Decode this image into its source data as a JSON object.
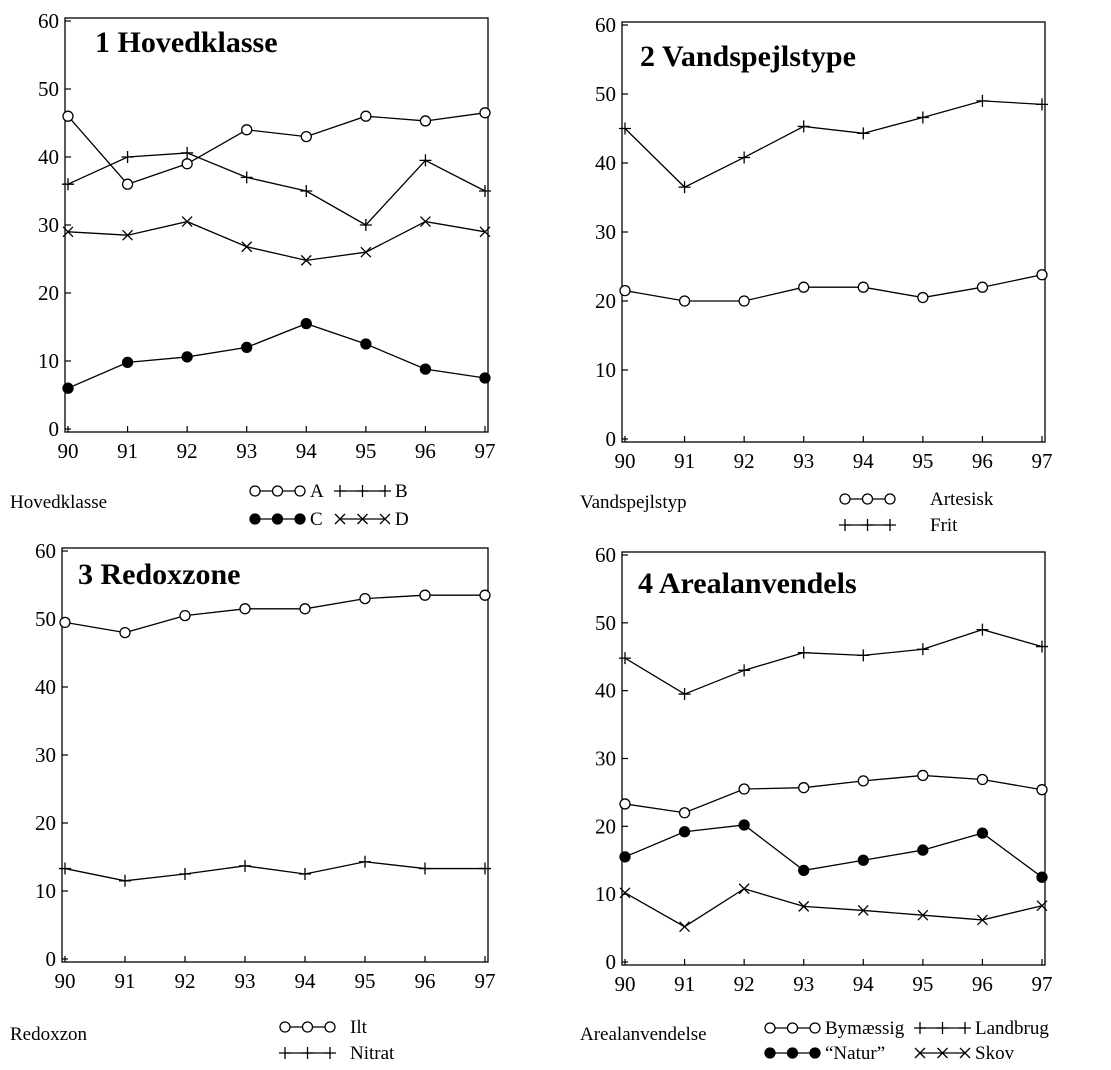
{
  "chart_data": [
    {
      "type": "line",
      "number": "1",
      "title": "Hovedklasse",
      "legend_title": "Hovedklasse",
      "x": [
        "90",
        "91",
        "92",
        "93",
        "94",
        "95",
        "96",
        "97"
      ],
      "yticks": [
        "0",
        "10",
        "20",
        "30",
        "40",
        "50",
        "60"
      ],
      "ylim": [
        0,
        60
      ],
      "grid": false,
      "series": [
        {
          "name": "A",
          "marker": "circle-open",
          "values": [
            46,
            36,
            39,
            44,
            43,
            46,
            45.3,
            46.5
          ]
        },
        {
          "name": "B",
          "marker": "plus",
          "values": [
            36,
            40,
            40.6,
            37,
            35,
            30,
            39.5,
            35
          ]
        },
        {
          "name": "C",
          "marker": "circle-filled",
          "values": [
            6,
            9.8,
            10.6,
            12,
            15.5,
            12.5,
            8.8,
            7.5
          ]
        },
        {
          "name": "D",
          "marker": "x",
          "values": [
            29,
            28.5,
            30.5,
            26.8,
            24.8,
            26,
            30.5,
            29
          ]
        }
      ]
    },
    {
      "type": "line",
      "number": "2",
      "title": "Vandspejlstype",
      "legend_title": "Vandspejlstyp",
      "x": [
        "90",
        "91",
        "92",
        "93",
        "94",
        "95",
        "96",
        "97"
      ],
      "yticks": [
        "0",
        "10",
        "20",
        "30",
        "40",
        "50",
        "60"
      ],
      "ylim": [
        0,
        60
      ],
      "grid": false,
      "series": [
        {
          "name": "Artesisk",
          "marker": "circle-open",
          "values": [
            21.5,
            20,
            20,
            22,
            22,
            20.5,
            22,
            23.8
          ]
        },
        {
          "name": "Frit",
          "marker": "plus",
          "values": [
            45,
            36.5,
            40.8,
            45.3,
            44.3,
            46.6,
            49,
            48.5
          ]
        }
      ]
    },
    {
      "type": "line",
      "number": "3",
      "title": "Redoxzone",
      "legend_title": "Redoxzon",
      "x": [
        "90",
        "91",
        "92",
        "93",
        "94",
        "95",
        "96",
        "97"
      ],
      "yticks": [
        "0",
        "10",
        "20",
        "30",
        "40",
        "50",
        "60"
      ],
      "ylim": [
        0,
        60
      ],
      "grid": false,
      "series": [
        {
          "name": "Ilt",
          "marker": "circle-open",
          "values": [
            49.5,
            48,
            50.5,
            51.5,
            51.5,
            53,
            53.5,
            53.5
          ]
        },
        {
          "name": "Nitrat",
          "marker": "plus",
          "values": [
            13.3,
            11.5,
            12.5,
            13.7,
            12.5,
            14.3,
            13.3,
            13.3
          ]
        }
      ]
    },
    {
      "type": "line",
      "number": "4",
      "title": "Arealanvendels",
      "legend_title": "Arealanvendelse",
      "x": [
        "90",
        "91",
        "92",
        "93",
        "94",
        "95",
        "96",
        "97"
      ],
      "yticks": [
        "0",
        "10",
        "20",
        "30",
        "40",
        "50",
        "60"
      ],
      "ylim": [
        0,
        60
      ],
      "grid": false,
      "series": [
        {
          "name": "Bymæssig",
          "marker": "circle-open",
          "values": [
            23.3,
            22,
            25.5,
            25.7,
            26.7,
            27.5,
            26.9,
            25.4
          ]
        },
        {
          "name": "Landbrug",
          "marker": "plus",
          "values": [
            44.8,
            39.5,
            43,
            45.6,
            45.2,
            46.1,
            49,
            46.5
          ]
        },
        {
          "name": "“Natur”",
          "marker": "circle-filled",
          "values": [
            15.5,
            19.2,
            20.2,
            13.5,
            15,
            16.5,
            19,
            12.5
          ]
        },
        {
          "name": "Skov",
          "marker": "x",
          "values": [
            10.2,
            5.2,
            10.8,
            8.2,
            7.6,
            6.9,
            6.2,
            8.3
          ]
        }
      ]
    }
  ]
}
